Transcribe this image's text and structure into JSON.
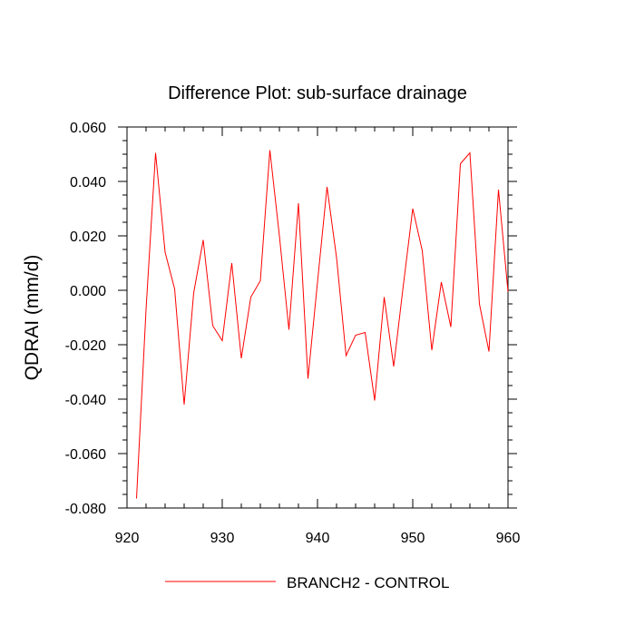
{
  "chart_data": {
    "type": "line",
    "title": "Difference Plot: sub-surface drainage",
    "ylabel": "QDRAI  (mm/d)",
    "xlabel": "",
    "xlim": [
      920,
      960
    ],
    "ylim": [
      -0.08,
      0.06
    ],
    "x_ticks": [
      920,
      930,
      940,
      950,
      960
    ],
    "x_tick_labels": [
      "920",
      "930",
      "940",
      "950",
      "960"
    ],
    "y_ticks": [
      -0.08,
      -0.06,
      -0.04,
      -0.02,
      0.0,
      0.02,
      0.04,
      0.06
    ],
    "y_tick_labels": [
      "-0.080",
      "-0.060",
      "-0.040",
      "-0.020",
      "0.000",
      "0.020",
      "0.040",
      "0.060"
    ],
    "grid": false,
    "legend_position": "bottom",
    "series": [
      {
        "name": "BRANCH2 - CONTROL",
        "color": "#ff0000",
        "x": [
          921,
          922,
          923,
          924,
          925,
          926,
          927,
          928,
          929,
          930,
          931,
          932,
          933,
          934,
          935,
          936,
          937,
          938,
          939,
          940,
          941,
          942,
          943,
          944,
          945,
          946,
          947,
          948,
          949,
          950,
          951,
          952,
          953,
          954,
          955,
          956,
          957,
          958,
          959,
          960
        ],
        "y": [
          -0.0765,
          -0.007,
          0.0505,
          0.014,
          0.0005,
          -0.042,
          -0.001,
          0.0185,
          -0.013,
          -0.0185,
          0.01,
          -0.025,
          -0.0025,
          0.0035,
          0.0515,
          0.02,
          -0.0145,
          0.032,
          -0.0325,
          0.003,
          0.038,
          0.012,
          -0.024,
          -0.0165,
          -0.0155,
          -0.0405,
          -0.0025,
          -0.028,
          0.0015,
          0.03,
          0.0145,
          -0.022,
          0.003,
          -0.0135,
          0.0465,
          0.0505,
          -0.005,
          -0.0225,
          0.037,
          -0.0005
        ]
      }
    ]
  }
}
